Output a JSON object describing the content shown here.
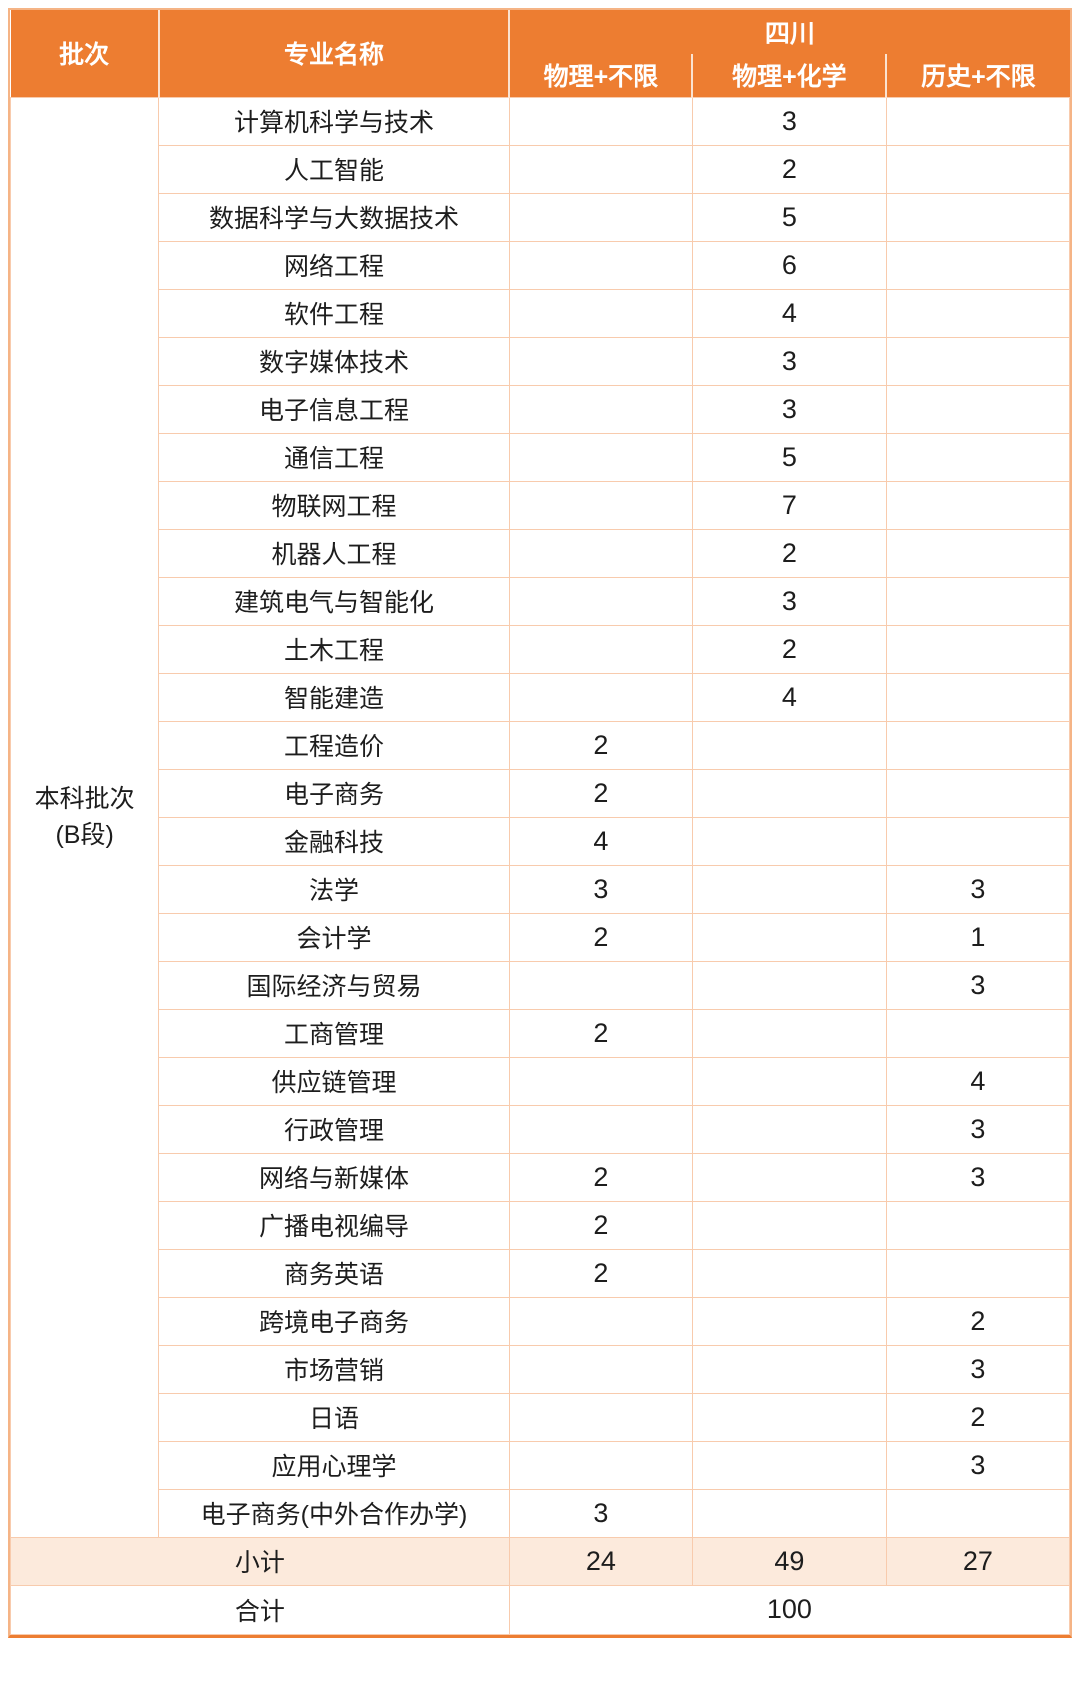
{
  "table": {
    "header": {
      "batch": "批次",
      "major": "专业名称",
      "province": "四川",
      "subcolumns": [
        "物理+不限",
        "物理+化学",
        "历史+不限"
      ]
    },
    "batch_cell": {
      "line1": "本科批次",
      "line2": "(B段)"
    },
    "rows": [
      {
        "major": "计算机科学与技术",
        "phys_any": "",
        "phys_chem": "3",
        "hist_any": ""
      },
      {
        "major": "人工智能",
        "phys_any": "",
        "phys_chem": "2",
        "hist_any": ""
      },
      {
        "major": "数据科学与大数据技术",
        "phys_any": "",
        "phys_chem": "5",
        "hist_any": ""
      },
      {
        "major": "网络工程",
        "phys_any": "",
        "phys_chem": "6",
        "hist_any": ""
      },
      {
        "major": "软件工程",
        "phys_any": "",
        "phys_chem": "4",
        "hist_any": ""
      },
      {
        "major": "数字媒体技术",
        "phys_any": "",
        "phys_chem": "3",
        "hist_any": ""
      },
      {
        "major": "电子信息工程",
        "phys_any": "",
        "phys_chem": "3",
        "hist_any": ""
      },
      {
        "major": "通信工程",
        "phys_any": "",
        "phys_chem": "5",
        "hist_any": ""
      },
      {
        "major": "物联网工程",
        "phys_any": "",
        "phys_chem": "7",
        "hist_any": ""
      },
      {
        "major": "机器人工程",
        "phys_any": "",
        "phys_chem": "2",
        "hist_any": ""
      },
      {
        "major": "建筑电气与智能化",
        "phys_any": "",
        "phys_chem": "3",
        "hist_any": ""
      },
      {
        "major": "土木工程",
        "phys_any": "",
        "phys_chem": "2",
        "hist_any": ""
      },
      {
        "major": "智能建造",
        "phys_any": "",
        "phys_chem": "4",
        "hist_any": ""
      },
      {
        "major": "工程造价",
        "phys_any": "2",
        "phys_chem": "",
        "hist_any": ""
      },
      {
        "major": "电子商务",
        "phys_any": "2",
        "phys_chem": "",
        "hist_any": ""
      },
      {
        "major": "金融科技",
        "phys_any": "4",
        "phys_chem": "",
        "hist_any": ""
      },
      {
        "major": "法学",
        "phys_any": "3",
        "phys_chem": "",
        "hist_any": "3"
      },
      {
        "major": "会计学",
        "phys_any": "2",
        "phys_chem": "",
        "hist_any": "1"
      },
      {
        "major": "国际经济与贸易",
        "phys_any": "",
        "phys_chem": "",
        "hist_any": "3"
      },
      {
        "major": "工商管理",
        "phys_any": "2",
        "phys_chem": "",
        "hist_any": ""
      },
      {
        "major": "供应链管理",
        "phys_any": "",
        "phys_chem": "",
        "hist_any": "4"
      },
      {
        "major": "行政管理",
        "phys_any": "",
        "phys_chem": "",
        "hist_any": "3"
      },
      {
        "major": "网络与新媒体",
        "phys_any": "2",
        "phys_chem": "",
        "hist_any": "3"
      },
      {
        "major": "广播电视编导",
        "phys_any": "2",
        "phys_chem": "",
        "hist_any": ""
      },
      {
        "major": "商务英语",
        "phys_any": "2",
        "phys_chem": "",
        "hist_any": ""
      },
      {
        "major": "跨境电子商务",
        "phys_any": "",
        "phys_chem": "",
        "hist_any": "2"
      },
      {
        "major": "市场营销",
        "phys_any": "",
        "phys_chem": "",
        "hist_any": "3"
      },
      {
        "major": "日语",
        "phys_any": "",
        "phys_chem": "",
        "hist_any": "2"
      },
      {
        "major": "应用心理学",
        "phys_any": "",
        "phys_chem": "",
        "hist_any": "3"
      },
      {
        "major": "电子商务(中外合作办学)",
        "phys_any": "3",
        "phys_chem": "",
        "hist_any": ""
      }
    ],
    "footer": {
      "subtotal_label": "小计",
      "subtotal": {
        "phys_any": "24",
        "phys_chem": "49",
        "hist_any": "27"
      },
      "total_label": "合计",
      "total": "100"
    },
    "colors": {
      "header_bg": "#ED7D31",
      "header_text": "#FFFFFF",
      "grid_line": "#F8CBAD",
      "subtotal_bg": "#FCEADC",
      "outer_border": "#ED7D31",
      "body_text": "#1D1D1D"
    }
  }
}
